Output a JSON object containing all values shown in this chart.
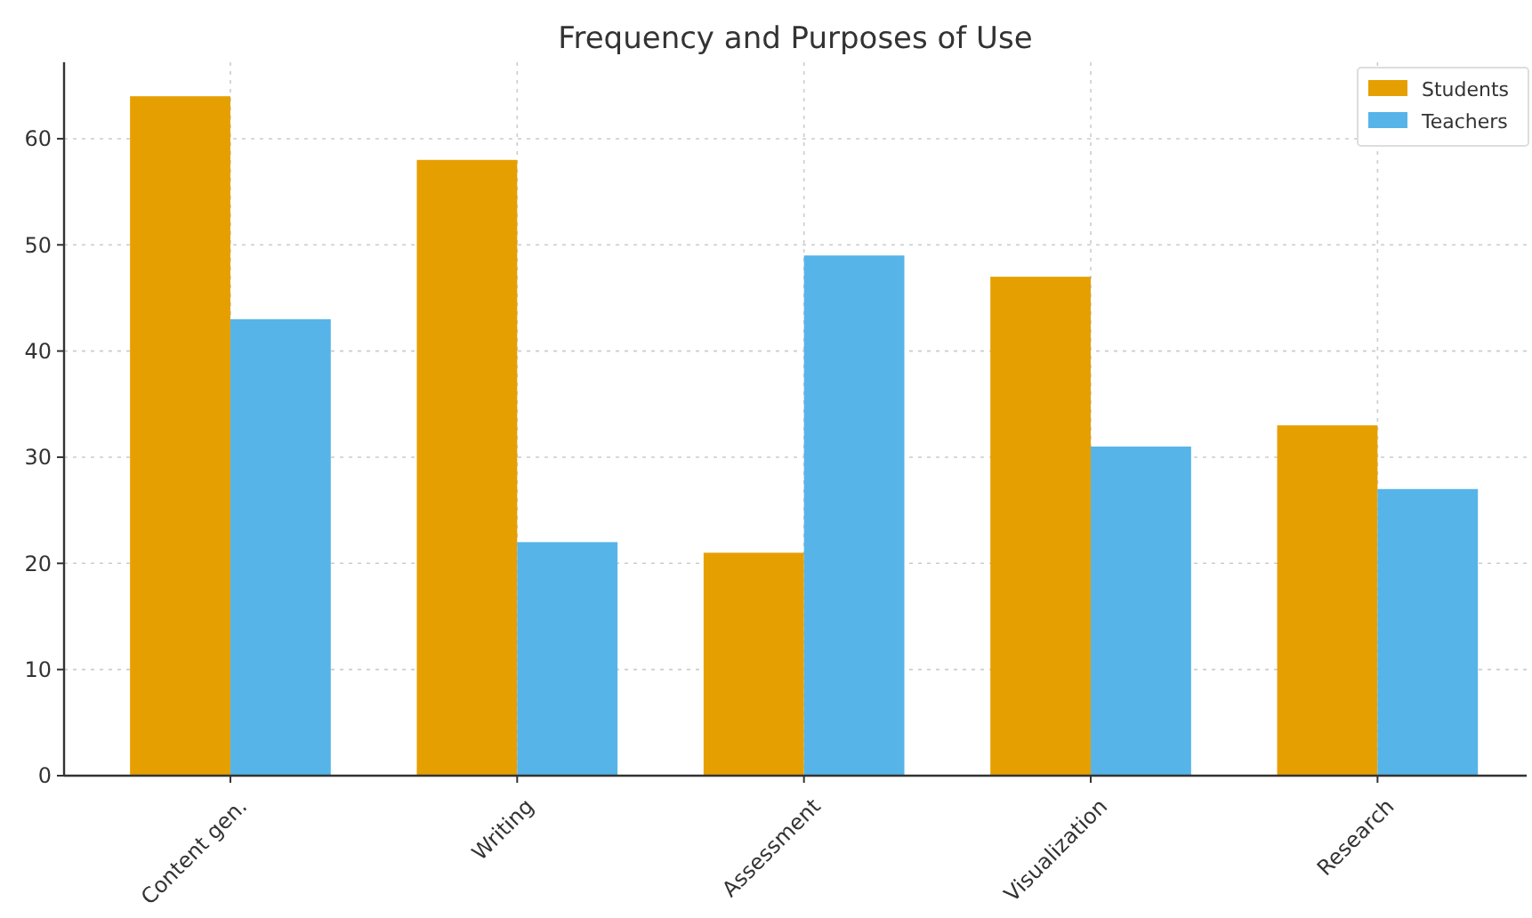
{
  "chart_data": {
    "type": "bar",
    "title": "Frequency and Purposes of Use",
    "categories": [
      "Content gen.",
      "Writing",
      "Assessment",
      "Visualization",
      "Research"
    ],
    "series": [
      {
        "name": "Students",
        "color": "#e69f00",
        "values": [
          64,
          58,
          21,
          47,
          33
        ]
      },
      {
        "name": "Teachers",
        "color": "#56b4e9",
        "values": [
          43,
          22,
          49,
          31,
          27
        ]
      }
    ],
    "ylim": [
      0,
      67.2
    ],
    "yticks": [
      0,
      10,
      20,
      30,
      40,
      50,
      60
    ],
    "grid": true,
    "legend": "top right"
  }
}
